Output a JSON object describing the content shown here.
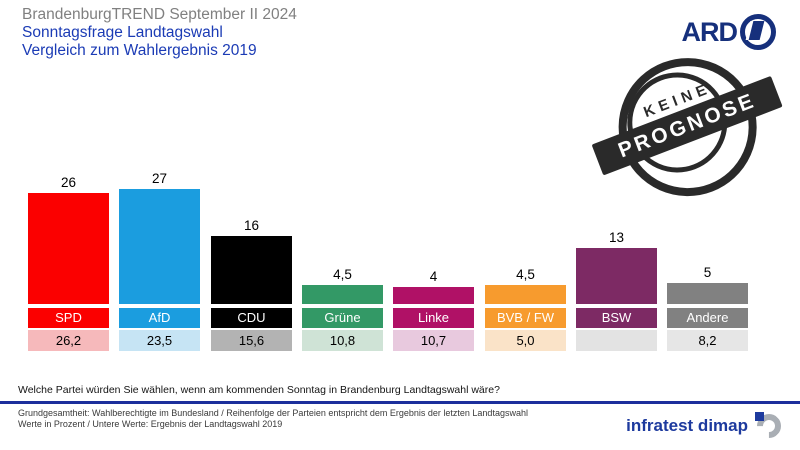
{
  "header": {
    "title": "BrandenburgTREND September II 2024",
    "subtitle_line1": "Sonntagsfrage Landtagswahl",
    "subtitle_line2": "Vergleich zum Wahlergebnis 2019"
  },
  "ard_logo": {
    "text": "ARD"
  },
  "stamp": {
    "line1": "KEINE",
    "line2": "PROGNOSE"
  },
  "chart_data": {
    "type": "bar",
    "title": "Sonntagsfrage Landtagswahl Brandenburg — Vergleich zum Wahlergebnis 2019",
    "categories": [
      "SPD",
      "AfD",
      "CDU",
      "Grüne",
      "Linke",
      "BVB / FW",
      "BSW",
      "Andere"
    ],
    "series": [
      {
        "name": "Sonntagsfrage September II 2024",
        "values": [
          26,
          27,
          16,
          4.5,
          4,
          4.5,
          13,
          5
        ]
      },
      {
        "name": "Ergebnis Landtagswahl 2019",
        "values": [
          26.2,
          23.5,
          15.6,
          10.8,
          10.7,
          5.0,
          null,
          8.2
        ]
      }
    ],
    "value_labels": [
      "26",
      "27",
      "16",
      "4,5",
      "4",
      "4,5",
      "13",
      "5"
    ],
    "prev_labels": [
      "26,2",
      "23,5",
      "15,6",
      "10,8",
      "10,7",
      "5,0",
      "",
      "8,2"
    ],
    "bar_colors": [
      "#fb0000",
      "#1b9ddf",
      "#000000",
      "#339966",
      "#b01166",
      "#f79b2e",
      "#7d2a64",
      "#818181"
    ],
    "prev_band_colors": [
      "#f6b9bb",
      "#c6e4f4",
      "#b3b3b3",
      "#cfe3d6",
      "#e8c9de",
      "#fae3c8",
      "#e3e3e3",
      "#e6e6e6"
    ],
    "unit": "Prozent",
    "ylim": [
      0,
      28
    ],
    "grid": false,
    "legend": "none"
  },
  "question": "Welche Partei würden Sie wählen, wenn am kommenden Sonntag in Brandenburg Landtagswahl wäre?",
  "footnote_line1": "Grundgesamtheit: Wahlberechtigte im Bundesland / Reihenfolge der Parteien entspricht dem Ergebnis der letzten Landtagswahl",
  "footnote_line2": "Werte in Prozent / Untere Werte: Ergebnis der Landtagswahl 2019",
  "branding": {
    "infratest": "infratest dimap"
  },
  "colors": {
    "title_gray": "#808080",
    "subtitle_blue": "#1b3bb5",
    "divider_navy": "#1c2f9c",
    "ard_navy": "#16307c",
    "infratest_blue": "#1d3a9e",
    "stamp_black": "#1a1a1a"
  }
}
